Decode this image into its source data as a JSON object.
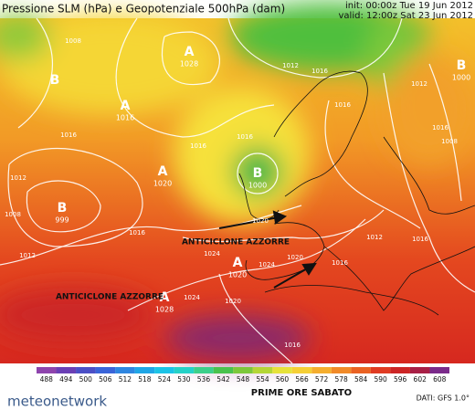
{
  "header": {
    "title": "Pressione SLM (hPa) e Geopotenziale 500hPa (dam)",
    "init": "init: 00:00z Tue 19 Jun 2012",
    "valid": "valid: 12:00z Sat 23 Jun 2012"
  },
  "centers": [
    {
      "letter": "B"
    },
    {
      "letter": "A",
      "value": 1028
    },
    {
      "letter": "A",
      "value": 1016
    },
    {
      "letter": "B",
      "value": 999
    },
    {
      "letter": "A",
      "value": 1020
    },
    {
      "letter": "B",
      "value": 1000
    },
    {
      "letter": "A",
      "value": 1020
    },
    {
      "letter": "A",
      "value": 1028
    },
    {
      "letter": "B",
      "value": 1000
    }
  ],
  "isobar_labels": [
    1008,
    1012,
    1016,
    1012,
    1016,
    1008,
    1016,
    1016,
    1016,
    1016,
    1012,
    1008,
    1016,
    1012,
    1020,
    1024,
    1024,
    1020,
    1016,
    1012,
    1020,
    1024,
    1016,
    1016
  ],
  "annotations": [
    "ANTICICLONE AZZORRE",
    "ANTICICLONE AZZORRE"
  ],
  "colorbar": {
    "ticks": [
      488,
      494,
      500,
      506,
      512,
      518,
      524,
      530,
      536,
      542,
      548,
      554,
      560,
      566,
      572,
      578,
      584,
      590,
      596,
      602,
      608
    ],
    "colors": [
      "#8e44ad",
      "#6a3fb5",
      "#4b4fc6",
      "#3a64d8",
      "#2e86e0",
      "#1fa6e6",
      "#1bc3e6",
      "#25d1c7",
      "#3ccf8a",
      "#49c24d",
      "#7cc83a",
      "#b4d636",
      "#e6e23a",
      "#f5cf35",
      "#f5ae2e",
      "#f18a28",
      "#ea6223",
      "#e03b22",
      "#cc2525",
      "#a81f45",
      "#7a2a8a"
    ]
  },
  "caption": "PRIME ORE SABATO",
  "footer": {
    "logo": "meteonetwork",
    "source": "DATI: GFS 1.0°"
  }
}
